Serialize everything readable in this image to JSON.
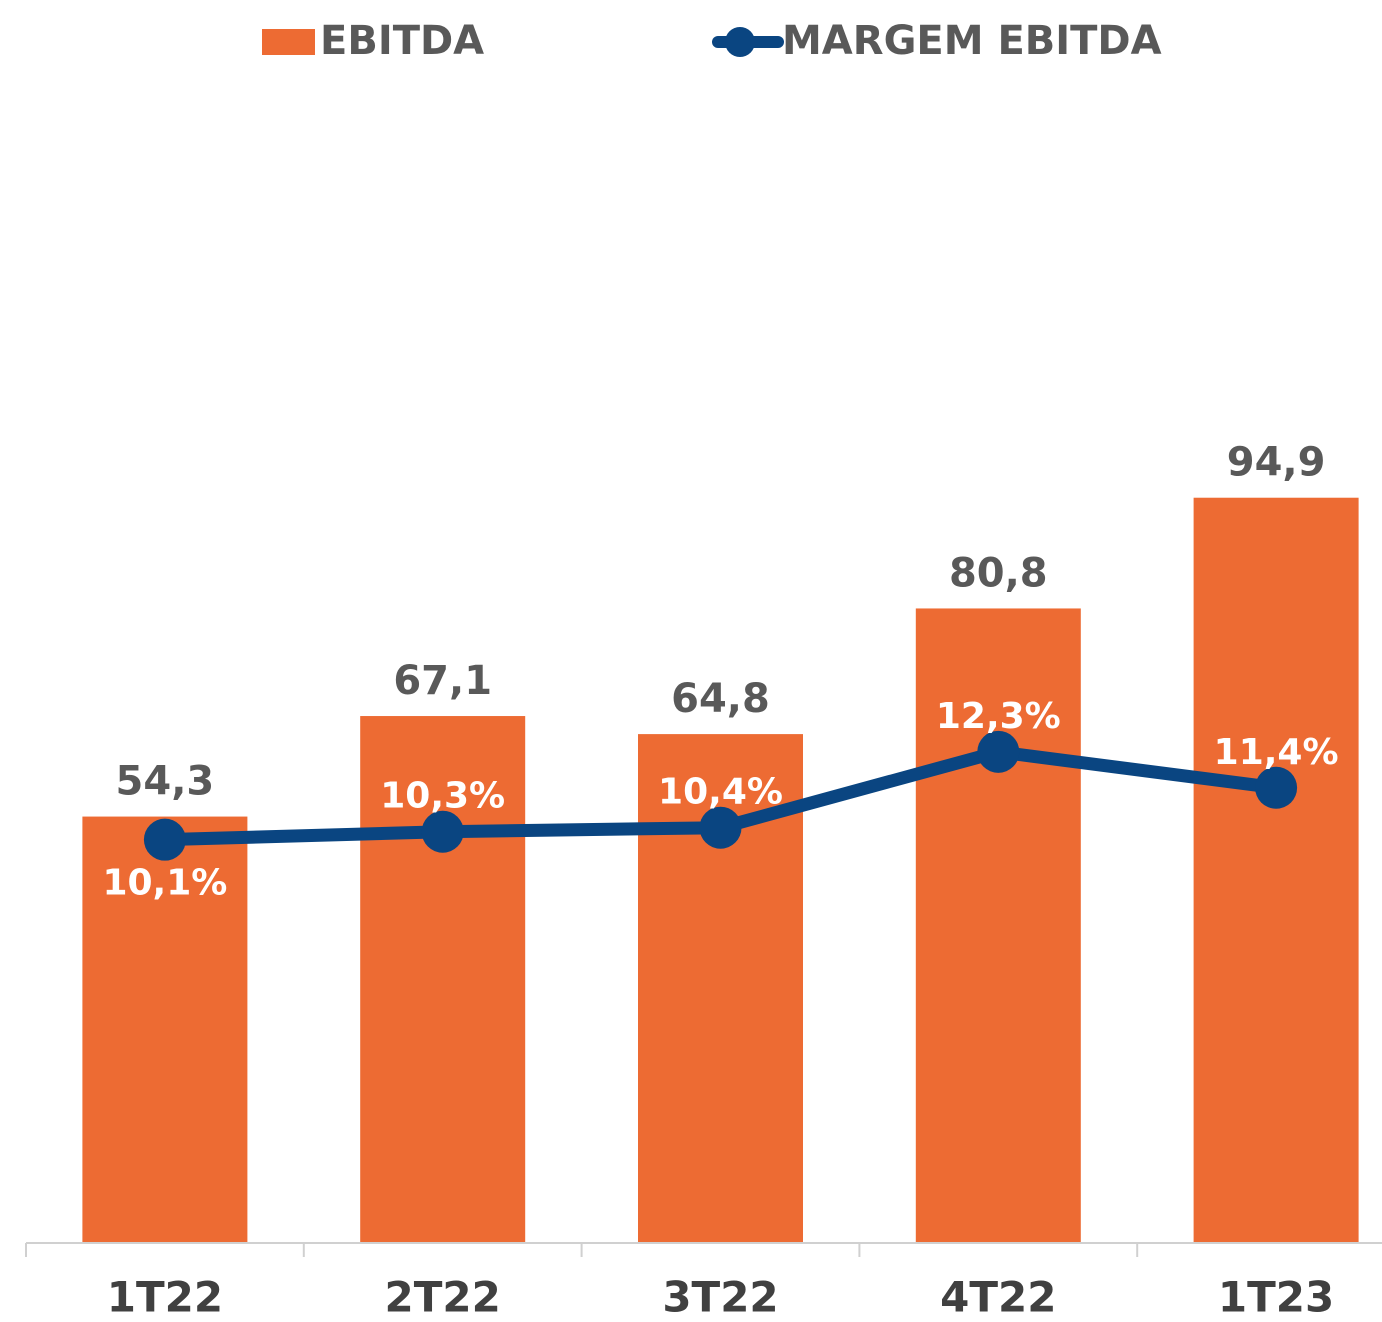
{
  "chart_data": {
    "type": "bar_line",
    "categories": [
      "1T22",
      "2T22",
      "3T22",
      "4T22",
      "1T23"
    ],
    "series": [
      {
        "name": "EBITDA",
        "type": "bar",
        "color": "#ED6B33",
        "values": [
          54.3,
          67.1,
          64.8,
          80.8,
          94.9
        ],
        "value_labels": [
          "54,3",
          "67,1",
          "64,8",
          "80,8",
          "94,9"
        ]
      },
      {
        "name": "MARGEM EBITDA",
        "type": "line",
        "axis": "y2",
        "color": "#0A4581",
        "values": [
          10.1,
          10.3,
          10.4,
          12.3,
          11.4
        ],
        "value_labels": [
          "10,1%",
          "10,3%",
          "10,4%",
          "12,3%",
          "11,4%"
        ]
      }
    ],
    "ylim": [
      0,
      150
    ],
    "y2lim": [
      0,
      29.5
    ],
    "legend": "top"
  }
}
